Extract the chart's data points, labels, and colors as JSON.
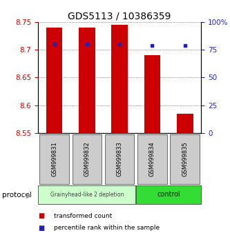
{
  "title": "GDS5113 / 10386359",
  "samples": [
    "GSM999831",
    "GSM999832",
    "GSM999833",
    "GSM999834",
    "GSM999835"
  ],
  "bar_bottom": 8.55,
  "bar_top": [
    8.74,
    8.74,
    8.745,
    8.69,
    8.585
  ],
  "pct_values": [
    80,
    80,
    80,
    79,
    79
  ],
  "ylim": [
    8.55,
    8.75
  ],
  "yticks_left": [
    8.55,
    8.6,
    8.65,
    8.7,
    8.75
  ],
  "yticks_right_pct": [
    0,
    25,
    50,
    75,
    100
  ],
  "bar_color": "#cc0000",
  "pct_color": "#2222bb",
  "group1_color_light": "#ccffcc",
  "group1_color": "#ccffcc",
  "group2_color": "#33dd33",
  "group1_label": "Grainyhead-like 2 depletion",
  "group2_label": "control",
  "group1_samples": [
    0,
    1,
    2
  ],
  "group2_samples": [
    3,
    4
  ],
  "protocol_label": "protocol",
  "legend_bar_label": "transformed count",
  "legend_pct_label": "percentile rank within the sample",
  "title_fontsize": 10,
  "tick_fontsize": 7.5,
  "bar_width": 0.5
}
